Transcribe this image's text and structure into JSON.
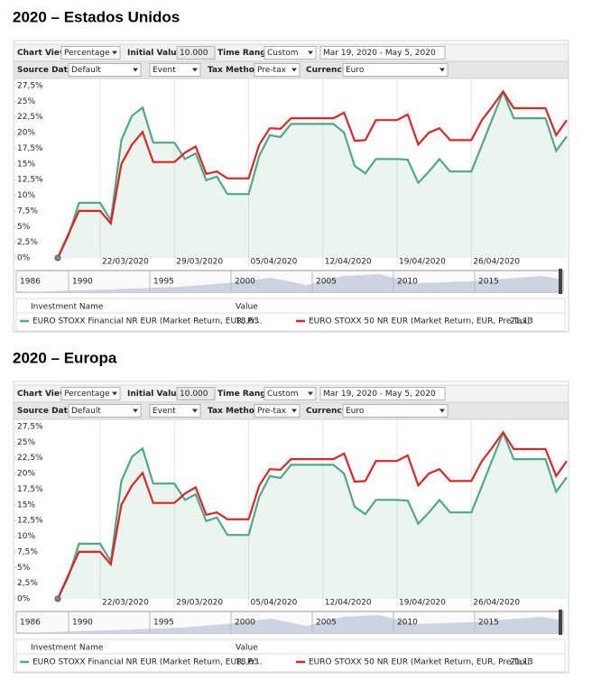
{
  "chart_data": [
    {
      "type": "line",
      "title": "2020 – Estados Unidos",
      "controls": [
        {
          "label": "Chart View",
          "value": "Percentage"
        },
        {
          "label": "Initial Value",
          "value": "10.000"
        },
        {
          "label": "Time Range",
          "value": "Custom"
        },
        {
          "value": "Mar 19, 2020 - May 5, 2020"
        },
        {
          "label": "Source Data",
          "value": "Default"
        },
        {
          "value": "Event"
        },
        {
          "label": "Tax Method",
          "value": "Pre-tax"
        },
        {
          "label": "Currency",
          "value": "Euro"
        }
      ],
      "x": [
        "18/03/2020",
        "19/03/2020",
        "20/03/2020",
        "21/03/2020",
        "22/03/2020",
        "23/03/2020",
        "24/03/2020",
        "25/03/2020",
        "26/03/2020",
        "27/03/2020",
        "28/03/2020",
        "29/03/2020",
        "30/03/2020",
        "31/03/2020",
        "01/04/2020",
        "02/04/2020",
        "03/04/2020",
        "04/04/2020",
        "05/04/2020",
        "06/04/2020",
        "07/04/2020",
        "08/04/2020",
        "09/04/2020",
        "10/04/2020",
        "11/04/2020",
        "12/04/2020",
        "13/04/2020",
        "14/04/2020",
        "15/04/2020",
        "16/04/2020",
        "17/04/2020",
        "18/04/2020",
        "19/04/2020",
        "20/04/2020",
        "21/04/2020",
        "22/04/2020",
        "23/04/2020",
        "24/04/2020",
        "25/04/2020",
        "26/04/2020",
        "27/04/2020",
        "28/04/2020",
        "29/04/2020",
        "30/04/2020",
        "01/05/2020",
        "02/05/2020",
        "03/05/2020",
        "04/05/2020",
        "05/05/2020"
      ],
      "xticks": [
        "22/03/2020",
        "29/03/2020",
        "05/04/2020",
        "12/04/2020",
        "19/04/2020",
        "26/04/2020"
      ],
      "series": [
        {
          "name": "EURO STOXX Financial NR EUR (Market Return, EUR, Pr...",
          "color": "#4fa986",
          "legend_value": "18,63",
          "values": [
            0,
            3.5,
            8.8,
            8.8,
            8.8,
            6,
            18.8,
            22.7,
            24,
            18.4,
            18.4,
            18.4,
            15.8,
            16.7,
            12.4,
            13,
            10.2,
            10.2,
            10.2,
            16.3,
            19.6,
            19.3,
            21.4,
            21.4,
            21.4,
            21.4,
            21.4,
            20,
            14.7,
            13.5,
            15.8,
            15.8,
            15.8,
            15.7,
            12,
            13.8,
            15.8,
            13.8,
            13.8,
            13.8,
            18,
            22.3,
            26.5,
            22.3,
            22.3,
            22.3,
            22.3,
            17.1,
            19.4
          ]
        },
        {
          "name": "EURO STOXX 50 NR EUR (Market Return, EUR, Pre-Tax)",
          "color": "#e02424",
          "legend_value": "21,13",
          "values": [
            0,
            3.8,
            7.5,
            7.5,
            7.5,
            5.5,
            15,
            18.1,
            20.1,
            15.3,
            15.3,
            15.3,
            16.8,
            17.8,
            13.4,
            13.8,
            12.7,
            12.7,
            12.7,
            18.1,
            20.7,
            20.6,
            22.3,
            22.3,
            22.3,
            22.3,
            22.3,
            23.2,
            18.7,
            18.8,
            22,
            22,
            22,
            22.9,
            18.1,
            20,
            20.7,
            18.8,
            18.8,
            18.8,
            22,
            24.2,
            26.6,
            23.9,
            23.9,
            23.9,
            23.9,
            19.6,
            22
          ]
        }
      ],
      "ylim": [
        0,
        27.5
      ],
      "yticks": [
        {
          "value": 0,
          "label": "0%"
        },
        {
          "value": 2.5,
          "label": "2,5%"
        },
        {
          "value": 5,
          "label": "5%"
        },
        {
          "value": 7.5,
          "label": "7,5%"
        },
        {
          "value": 10,
          "label": "10%"
        },
        {
          "value": 12.5,
          "label": "12,5%"
        },
        {
          "value": 15,
          "label": "15%"
        },
        {
          "value": 17.5,
          "label": "17,5%"
        },
        {
          "value": 20,
          "label": "20%"
        },
        {
          "value": 22.5,
          "label": "22,5%"
        },
        {
          "value": 25,
          "label": "25%"
        },
        {
          "value": 27.5,
          "label": "27,5%"
        }
      ],
      "navigator_years": [
        "1986",
        "1990",
        "1995",
        "2000",
        "2005",
        "2010",
        "2015"
      ],
      "legend_header": [
        "Investment Name",
        "Value"
      ]
    },
    {
      "type": "line",
      "title": "2020 – Europa",
      "controls": [
        {
          "label": "Chart View",
          "value": "Percentage"
        },
        {
          "label": "Initial Value",
          "value": "10.000"
        },
        {
          "label": "Time Range",
          "value": "Custom"
        },
        {
          "value": "Mar 19, 2020 - May 5, 2020"
        },
        {
          "label": "Source Data",
          "value": "Default"
        },
        {
          "value": "Event"
        },
        {
          "label": "Tax Method",
          "value": "Pre-tax"
        },
        {
          "label": "Currency",
          "value": "Euro"
        }
      ],
      "x": [
        "18/03/2020",
        "19/03/2020",
        "20/03/2020",
        "21/03/2020",
        "22/03/2020",
        "23/03/2020",
        "24/03/2020",
        "25/03/2020",
        "26/03/2020",
        "27/03/2020",
        "28/03/2020",
        "29/03/2020",
        "30/03/2020",
        "31/03/2020",
        "01/04/2020",
        "02/04/2020",
        "03/04/2020",
        "04/04/2020",
        "05/04/2020",
        "06/04/2020",
        "07/04/2020",
        "08/04/2020",
        "09/04/2020",
        "10/04/2020",
        "11/04/2020",
        "12/04/2020",
        "13/04/2020",
        "14/04/2020",
        "15/04/2020",
        "16/04/2020",
        "17/04/2020",
        "18/04/2020",
        "19/04/2020",
        "20/04/2020",
        "21/04/2020",
        "22/04/2020",
        "23/04/2020",
        "24/04/2020",
        "25/04/2020",
        "26/04/2020",
        "27/04/2020",
        "28/04/2020",
        "29/04/2020",
        "30/04/2020",
        "01/05/2020",
        "02/05/2020",
        "03/05/2020",
        "04/05/2020",
        "05/05/2020"
      ],
      "xticks": [
        "22/03/2020",
        "29/03/2020",
        "05/04/2020",
        "12/04/2020",
        "19/04/2020",
        "26/04/2020"
      ],
      "series": [
        {
          "name": "EURO STOXX Financial NR EUR (Market Return, EUR, Pr...",
          "color": "#4fa986",
          "legend_value": "18,63",
          "values": [
            0,
            3.5,
            8.8,
            8.8,
            8.8,
            6,
            18.8,
            22.7,
            24,
            18.4,
            18.4,
            18.4,
            15.8,
            16.7,
            12.4,
            13,
            10.2,
            10.2,
            10.2,
            16.3,
            19.6,
            19.3,
            21.4,
            21.4,
            21.4,
            21.4,
            21.4,
            20,
            14.7,
            13.5,
            15.8,
            15.8,
            15.8,
            15.7,
            12,
            13.8,
            15.8,
            13.8,
            13.8,
            13.8,
            18,
            22.3,
            26.5,
            22.3,
            22.3,
            22.3,
            22.3,
            17.1,
            19.4
          ]
        },
        {
          "name": "EURO STOXX 50 NR EUR (Market Return, EUR, Pre-Tax)",
          "color": "#e02424",
          "legend_value": "21,13",
          "values": [
            0,
            3.8,
            7.5,
            7.5,
            7.5,
            5.5,
            15,
            18.1,
            20.1,
            15.3,
            15.3,
            15.3,
            16.8,
            17.8,
            13.4,
            13.8,
            12.7,
            12.7,
            12.7,
            18.1,
            20.7,
            20.6,
            22.3,
            22.3,
            22.3,
            22.3,
            22.3,
            23.2,
            18.7,
            18.8,
            22,
            22,
            22,
            22.9,
            18.1,
            20,
            20.7,
            18.8,
            18.8,
            18.8,
            22,
            24.2,
            26.6,
            23.9,
            23.9,
            23.9,
            23.9,
            19.6,
            22
          ]
        }
      ],
      "ylim": [
        0,
        27.5
      ],
      "yticks": [
        {
          "value": 0,
          "label": "0%"
        },
        {
          "value": 2.5,
          "label": "2,5%"
        },
        {
          "value": 5,
          "label": "5%"
        },
        {
          "value": 7.5,
          "label": "7,5%"
        },
        {
          "value": 10,
          "label": "10%"
        },
        {
          "value": 12.5,
          "label": "12,5%"
        },
        {
          "value": 15,
          "label": "15%"
        },
        {
          "value": 17.5,
          "label": "17,5%"
        },
        {
          "value": 20,
          "label": "20%"
        },
        {
          "value": 22.5,
          "label": "22,5%"
        },
        {
          "value": 25,
          "label": "25%"
        },
        {
          "value": 27.5,
          "label": "27,5%"
        }
      ],
      "navigator_years": [
        "1986",
        "1990",
        "1995",
        "2000",
        "2005",
        "2010",
        "2015"
      ],
      "legend_header": [
        "Investment Name",
        "Value"
      ]
    }
  ]
}
